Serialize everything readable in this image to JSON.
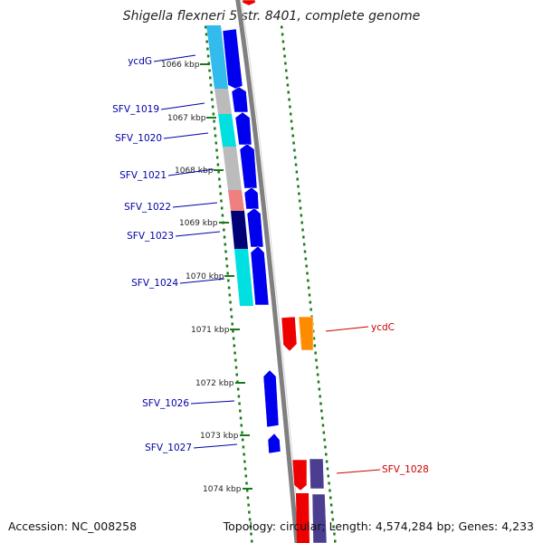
{
  "title": "Shigella flexneri 5 str. 8401, complete genome",
  "footer": {
    "accession": "Accession: NC_008258",
    "summary": "Topology: circular; Length: 4,574,284 bp; Genes: 4,233"
  },
  "colors": {
    "backbone": "#808080",
    "tick": "#1a7a1a",
    "label_blue": "#0000aa",
    "label_red": "#cc0000",
    "arrow_blue": "#0000ee",
    "arrow_red": "#ee0000",
    "arrow_orange": "#ff8c00",
    "arrow_purple": "#4b3d8f",
    "cog_skyblue": "#33bbee",
    "cog_gray": "#bbbbbb",
    "cog_cyan": "#00e0e0",
    "cog_salmon": "#ee8080",
    "cog_navy": "#000077"
  },
  "ticks": [
    "1066 kbp",
    "1067 kbp",
    "1068 kbp",
    "1069 kbp",
    "1070 kbp",
    "1071 kbp",
    "1072 kbp",
    "1073 kbp",
    "1074 kbp"
  ],
  "genes": [
    {
      "label": "ycdG",
      "strand": "minus"
    },
    {
      "label": "SFV_1019",
      "strand": "minus"
    },
    {
      "label": "SFV_1020",
      "strand": "minus"
    },
    {
      "label": "SFV_1021",
      "strand": "minus"
    },
    {
      "label": "SFV_1022",
      "strand": "minus"
    },
    {
      "label": "SFV_1023",
      "strand": "minus"
    },
    {
      "label": "SFV_1024",
      "strand": "minus"
    },
    {
      "label": "ycdC",
      "strand": "plus"
    },
    {
      "label": "SFV_1026",
      "strand": "minus"
    },
    {
      "label": "SFV_1027",
      "strand": "minus"
    },
    {
      "label": "SFV_1028",
      "strand": "plus"
    }
  ]
}
